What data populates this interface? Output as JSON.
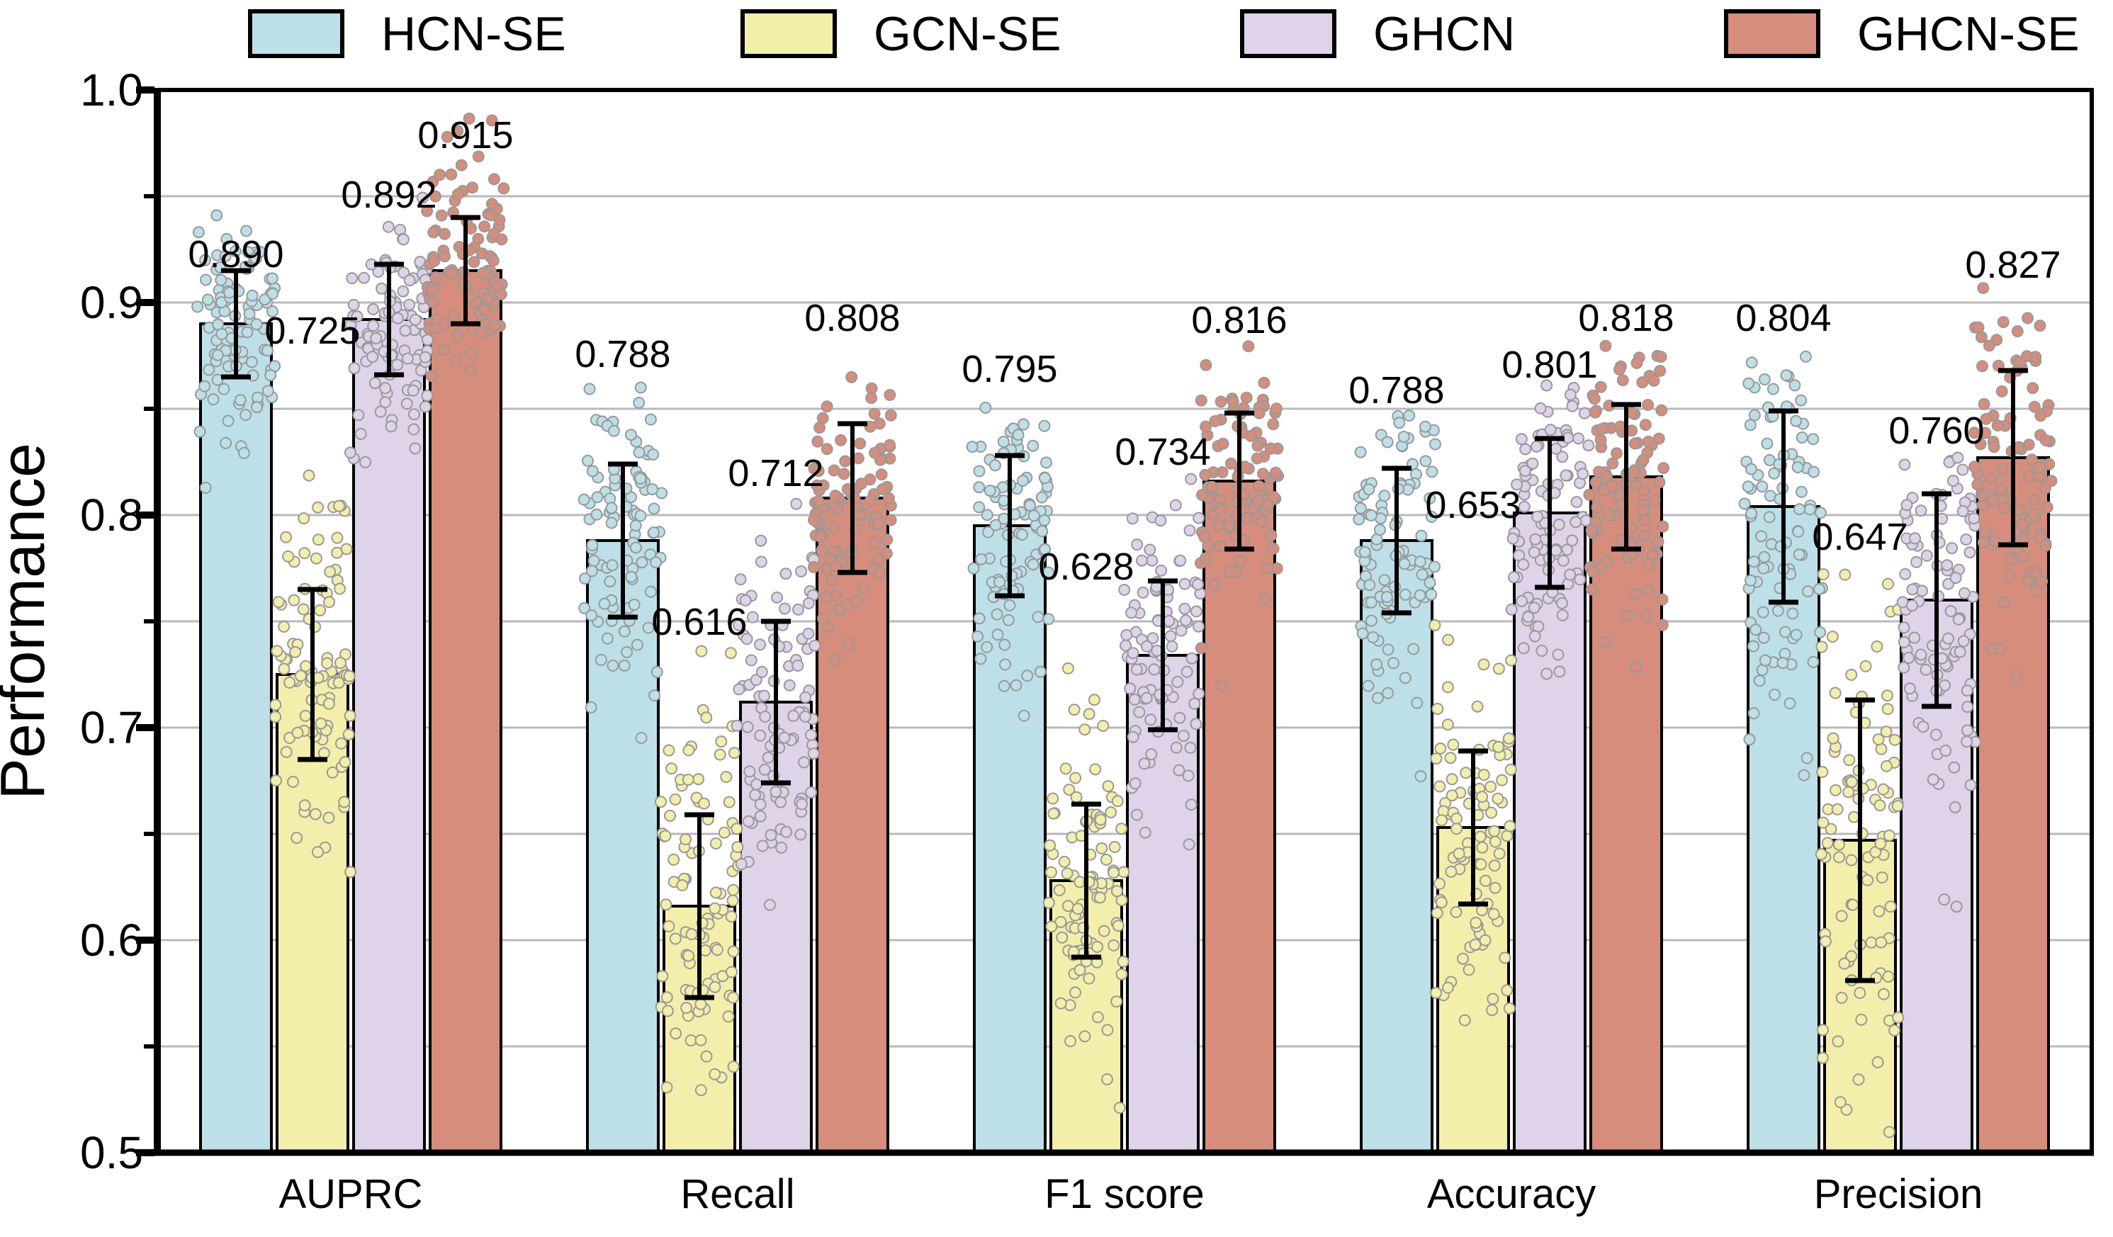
{
  "chart_data": {
    "type": "bar",
    "title": "",
    "xlabel": "",
    "ylabel": "Performance",
    "ylim": [
      0.5,
      1.0
    ],
    "ytick_major": [
      0.5,
      0.6,
      0.7,
      0.8,
      0.9,
      1.0
    ],
    "ytick_major_labels": [
      "0.5",
      "0.6",
      "0.7",
      "0.8",
      "0.9",
      "1.0"
    ],
    "ytick_minor": [
      0.55,
      0.65,
      0.75,
      0.85,
      0.95
    ],
    "gridline_values": [
      0.55,
      0.6,
      0.65,
      0.7,
      0.75,
      0.8,
      0.85,
      0.9,
      0.95
    ],
    "grid": true,
    "legend_position": "top",
    "categories": [
      "AUPRC",
      "Recall",
      "F1 score",
      "Accuracy",
      "Precision"
    ],
    "series": [
      {
        "name": "HCN-SE",
        "color": "#bde0e8",
        "values": [
          0.89,
          0.788,
          0.795,
          0.788,
          0.804
        ],
        "errors": [
          0.025,
          0.036,
          0.033,
          0.034,
          0.045
        ],
        "value_labels": [
          "0.890",
          "0.788",
          "0.795",
          "0.788",
          "0.804"
        ],
        "label_y": [
          0.923,
          0.876,
          0.869,
          0.859,
          0.893
        ]
      },
      {
        "name": "GCN-SE",
        "color": "#f3efab",
        "values": [
          0.725,
          0.616,
          0.628,
          0.653,
          0.647
        ],
        "errors": [
          0.04,
          0.043,
          0.036,
          0.036,
          0.066
        ],
        "value_labels": [
          "0.725",
          "0.616",
          "0.628",
          "0.653",
          "0.647"
        ],
        "label_y": [
          0.887,
          0.75,
          0.776,
          0.805,
          0.79
        ]
      },
      {
        "name": "GHCN",
        "color": "#ded3e9",
        "values": [
          0.892,
          0.712,
          0.734,
          0.801,
          0.76
        ],
        "errors": [
          0.026,
          0.038,
          0.035,
          0.035,
          0.05
        ],
        "value_labels": [
          "0.892",
          "0.712",
          "0.734",
          "0.801",
          "0.760"
        ],
        "label_y": [
          0.951,
          0.82,
          0.83,
          0.871,
          0.84
        ]
      },
      {
        "name": "GHCN-SE",
        "color": "#d78d7b",
        "values": [
          0.915,
          0.808,
          0.816,
          0.818,
          0.827
        ],
        "errors": [
          0.025,
          0.035,
          0.032,
          0.034,
          0.041
        ],
        "value_labels": [
          "0.915",
          "0.808",
          "0.816",
          "0.818",
          "0.827"
        ],
        "label_y": [
          0.979,
          0.893,
          0.892,
          0.893,
          0.918
        ]
      }
    ],
    "scatter_overlay": {
      "points_per_bar": 100,
      "dot_stroke_color": "#999999",
      "dot_radius": 7.5
    }
  },
  "style_colors": {
    "axis": "#000000",
    "gridline": "#b9b9b9",
    "bar_border": "#000000",
    "error_bar": "#000000",
    "background": "#ffffff"
  }
}
